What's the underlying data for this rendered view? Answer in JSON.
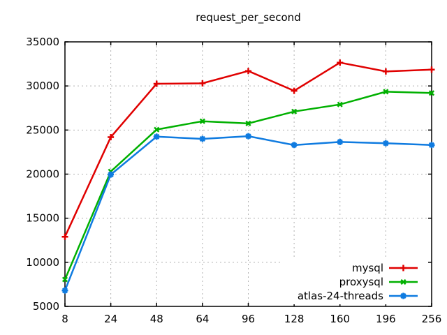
{
  "title": "request_per_second",
  "chart_data": {
    "type": "line",
    "title": "request_per_second",
    "xlabel": "",
    "ylabel": "",
    "categories": [
      "8",
      "24",
      "48",
      "64",
      "96",
      "128",
      "160",
      "196",
      "256"
    ],
    "series": [
      {
        "name": "mysql",
        "color": "#e00000",
        "marker": "plus",
        "values": [
          12900,
          24200,
          30250,
          30300,
          31700,
          29450,
          32650,
          31650,
          31850
        ]
      },
      {
        "name": "proxysql",
        "color": "#00b000",
        "marker": "cross",
        "values": [
          8050,
          20300,
          25050,
          26000,
          25750,
          27100,
          27900,
          29350,
          29200
        ]
      },
      {
        "name": "atlas-24-threads",
        "color": "#0f7be0",
        "marker": "asterisk",
        "values": [
          6800,
          19950,
          24250,
          24000,
          24300,
          23300,
          23650,
          23500,
          23300
        ]
      }
    ],
    "ylim": [
      5000,
      35000
    ],
    "ytick_step": 5000,
    "y_tick_labels": [
      "5000",
      "10000",
      "15000",
      "20000",
      "25000",
      "30000",
      "35000"
    ],
    "grid": true,
    "grid_style": "dotted",
    "grid_color": "#b0b0b0",
    "axis_color": "#000000",
    "background": "#ffffff",
    "legend_position": "bottom-right",
    "legend_entries": [
      "mysql",
      "proxysql",
      "atlas-24-threads"
    ]
  }
}
